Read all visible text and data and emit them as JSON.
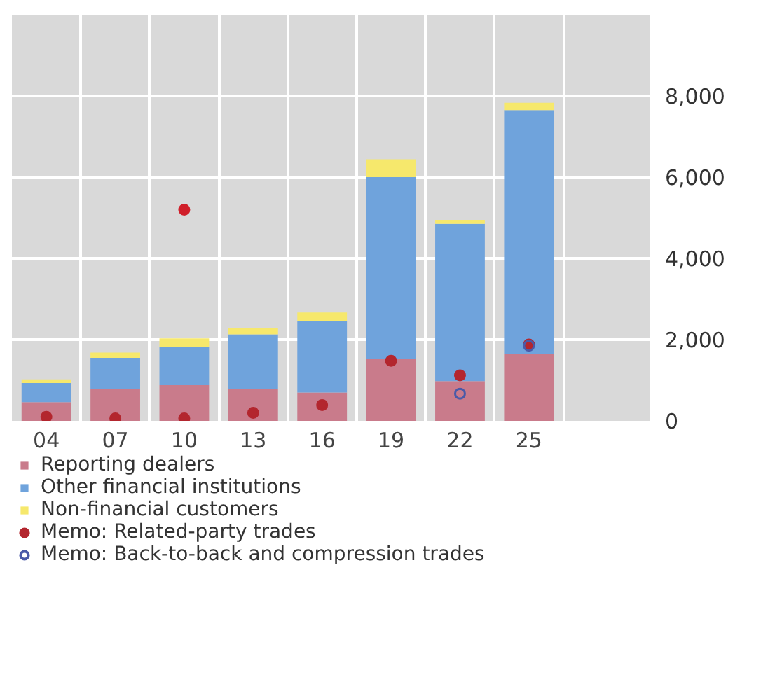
{
  "chart_data": {
    "type": "bar",
    "stacked": true,
    "categories": [
      "04",
      "07",
      "10",
      "13",
      "16",
      "19",
      "22",
      "25"
    ],
    "series": [
      {
        "name": "Reporting dealers",
        "color": "#c97b8b",
        "values": [
          460,
          790,
          880,
          790,
          700,
          1520,
          980,
          1650
        ]
      },
      {
        "name": "Other financial institutions",
        "color": "#6fa3dc",
        "values": [
          470,
          760,
          940,
          1340,
          1760,
          4480,
          3870,
          6000
        ]
      },
      {
        "name": "Non-financial customers",
        "color": "#f6e86c",
        "values": [
          90,
          130,
          210,
          160,
          210,
          440,
          100,
          180
        ]
      },
      {
        "name": "Memo: Related-party trades",
        "type": "scatter",
        "marker": "circle",
        "color": "#b3262e",
        "values": [
          100,
          60,
          60,
          200,
          390,
          1480,
          1120,
          1880
        ]
      },
      {
        "type": "scatter",
        "marker": "circle",
        "color": "#d01f2a",
        "values": [
          null,
          null,
          5200,
          null,
          null,
          null,
          null,
          null
        ]
      },
      {
        "name": "Memo: Back-to-back and compression trades",
        "type": "scatter",
        "marker": "circle",
        "color": "#4a5aa8",
        "values": [
          null,
          null,
          null,
          null,
          null,
          null,
          670,
          1850
        ]
      }
    ],
    "ylim": [
      0,
      10000
    ],
    "yticks": [
      {
        "value": 0,
        "label": "0"
      },
      {
        "value": 2000,
        "label": "2,000"
      },
      {
        "value": 4000,
        "label": "4,000"
      },
      {
        "value": 6000,
        "label": "6,000"
      },
      {
        "value": 8000,
        "label": "8,000"
      }
    ],
    "grid": true,
    "legend": "bottom"
  }
}
